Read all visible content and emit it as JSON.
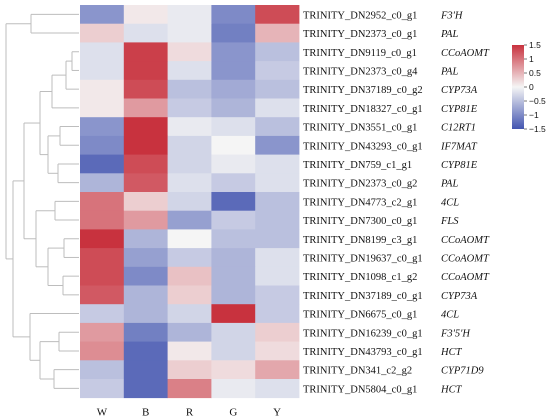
{
  "chart_data": {
    "type": "heatmap",
    "columns": [
      "W",
      "B",
      "R",
      "G",
      "Y"
    ],
    "rows": [
      {
        "id": "TRINITY_DN2952_c0_g1",
        "gene": "F3'H",
        "values": [
          -0.9,
          0.1,
          -0.1,
          -1.0,
          1.3
        ]
      },
      {
        "id": "TRINITY_DN2373_c0_g1",
        "gene": "PAL",
        "values": [
          0.3,
          -0.2,
          -0.1,
          -1.1,
          0.5
        ]
      },
      {
        "id": "TRINITY_DN9119_c0_g1",
        "gene": "CCoAOMT",
        "values": [
          -0.2,
          1.4,
          0.2,
          -0.9,
          -0.5
        ]
      },
      {
        "id": "TRINITY_DN2373_c0_g4",
        "gene": "PAL",
        "values": [
          -0.2,
          1.4,
          -0.2,
          -0.9,
          -0.4
        ]
      },
      {
        "id": "TRINITY_DN37189_c0_g2",
        "gene": "CYP73A",
        "values": [
          0.1,
          1.3,
          -0.5,
          -0.7,
          -0.5
        ]
      },
      {
        "id": "TRINITY_DN18327_c0_g1",
        "gene": "CYP81E",
        "values": [
          0.1,
          0.7,
          -0.4,
          -0.6,
          -0.2
        ]
      },
      {
        "id": "TRINITY_DN3551_c0_g1",
        "gene": "C12RT1",
        "values": [
          -0.9,
          1.5,
          -0.1,
          -0.2,
          -0.5
        ]
      },
      {
        "id": "TRINITY_DN43293_c0_g1",
        "gene": "IF7MAT",
        "values": [
          -1.0,
          1.5,
          -0.3,
          0.0,
          -0.9
        ]
      },
      {
        "id": "TRINITY_DN759_c1_g1",
        "gene": "CYP81E",
        "values": [
          -1.3,
          1.3,
          -0.3,
          -0.1,
          -0.2
        ]
      },
      {
        "id": "TRINITY_DN2373_c0_g2",
        "gene": "PAL",
        "values": [
          -0.6,
          1.2,
          -0.2,
          -0.4,
          -0.2
        ]
      },
      {
        "id": "TRINITY_DN4773_c2_g1",
        "gene": "4CL",
        "values": [
          1.0,
          0.3,
          -0.3,
          -1.3,
          -0.5
        ]
      },
      {
        "id": "TRINITY_DN7300_c0_g1",
        "gene": "FLS",
        "values": [
          1.0,
          0.7,
          -0.8,
          -0.4,
          -0.5
        ]
      },
      {
        "id": "TRINITY_DN8199_c3_g1",
        "gene": "CCoAOMT",
        "values": [
          1.5,
          -0.6,
          0.0,
          -0.5,
          -0.5
        ]
      },
      {
        "id": "TRINITY_DN19637_c0_g1",
        "gene": "CCoAOMT",
        "values": [
          1.3,
          -0.8,
          -0.4,
          -0.6,
          -0.2
        ]
      },
      {
        "id": "TRINITY_DN1098_c1_g2",
        "gene": "CCoAOMT",
        "values": [
          1.3,
          -1.0,
          0.4,
          -0.6,
          -0.2
        ]
      },
      {
        "id": "TRINITY_DN37189_c0_g1",
        "gene": "CYP73A",
        "values": [
          1.2,
          -0.6,
          0.3,
          -0.6,
          -0.4
        ]
      },
      {
        "id": "TRINITY_DN6675_c0_g1",
        "gene": "4CL",
        "values": [
          -0.4,
          -0.6,
          -0.3,
          1.6,
          -0.4
        ]
      },
      {
        "id": "TRINITY_DN16239_c0_g1",
        "gene": "F3'5'H",
        "values": [
          0.7,
          -1.1,
          -0.6,
          -0.3,
          0.3
        ]
      },
      {
        "id": "TRINITY_DN43793_c0_g1",
        "gene": "HCT",
        "values": [
          0.8,
          -1.3,
          0.1,
          -0.3,
          0.2
        ]
      },
      {
        "id": "TRINITY_DN341_c2_g2",
        "gene": "CYP71D9",
        "values": [
          -0.5,
          -1.3,
          0.3,
          0.2,
          0.6
        ]
      },
      {
        "id": "TRINITY_DN5804_c0_g1",
        "gene": "HCT",
        "values": [
          -0.4,
          -1.3,
          0.9,
          -0.1,
          -0.2
        ]
      }
    ],
    "color_scale": {
      "min": -1.5,
      "max": 1.5,
      "low": "#4355b0",
      "mid": "#f5f5f5",
      "high": "#c8323e"
    },
    "legend_ticks": [
      "1.5",
      "1",
      "0.5",
      "0",
      "−0.5",
      "−1",
      "−1.5"
    ],
    "legend_placement": "top-right",
    "row_dendrogram": true,
    "title": "",
    "xlabel": "",
    "ylabel": ""
  }
}
